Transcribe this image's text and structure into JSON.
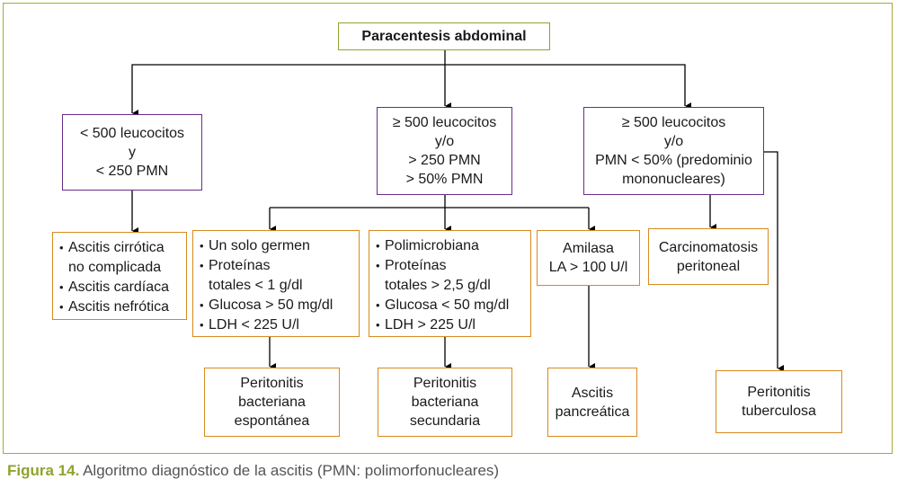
{
  "root": {
    "label": "Paracentesis abdominal"
  },
  "branches": {
    "left": {
      "lines": [
        "< 500 leucocitos",
        "y",
        "< 250 PMN"
      ]
    },
    "middle": {
      "lines": [
        "≥ 500 leucocitos",
        "y/o",
        "> 250 PMN",
        "> 50% PMN"
      ]
    },
    "right": {
      "lines": [
        "≥ 500 leucocitos",
        "y/o",
        "PMN < 50% (predominio",
        "mononucleares)"
      ]
    }
  },
  "criteria": {
    "left": {
      "items": [
        "Ascitis cirrótica",
        "no complicada",
        "Ascitis cardíaca",
        "Ascitis nefrótica"
      ]
    },
    "spont": {
      "items": [
        "Un solo germen",
        "Proteínas",
        "totales < 1 g/dl",
        "Glucosa > 50 mg/dl",
        "LDH < 225 U/l"
      ]
    },
    "second": {
      "items": [
        "Polimicrobiana",
        "Proteínas",
        "totales > 2,5 g/dl",
        "Glucosa < 50 mg/dl",
        "LDH > 225 U/l"
      ]
    },
    "amylase": {
      "lines": [
        "Amilasa",
        "LA > 100 U/l"
      ]
    },
    "carcino": {
      "lines": [
        "Carcinomatosis",
        "peritoneal"
      ]
    }
  },
  "diagnoses": {
    "spont": {
      "lines": [
        "Peritonitis",
        "bacteriana",
        "espontánea"
      ]
    },
    "second": {
      "lines": [
        "Peritonitis",
        "bacteriana",
        "secundaria"
      ]
    },
    "pancr": {
      "lines": [
        "Ascitis",
        "pancreática"
      ]
    },
    "tuber": {
      "lines": [
        "Peritonitis",
        "tuberculosa"
      ]
    }
  },
  "caption": {
    "figure": "Figura 14.",
    "text": " Algoritmo diagnóstico de la ascitis (PMN: polimorfonucleares)"
  }
}
